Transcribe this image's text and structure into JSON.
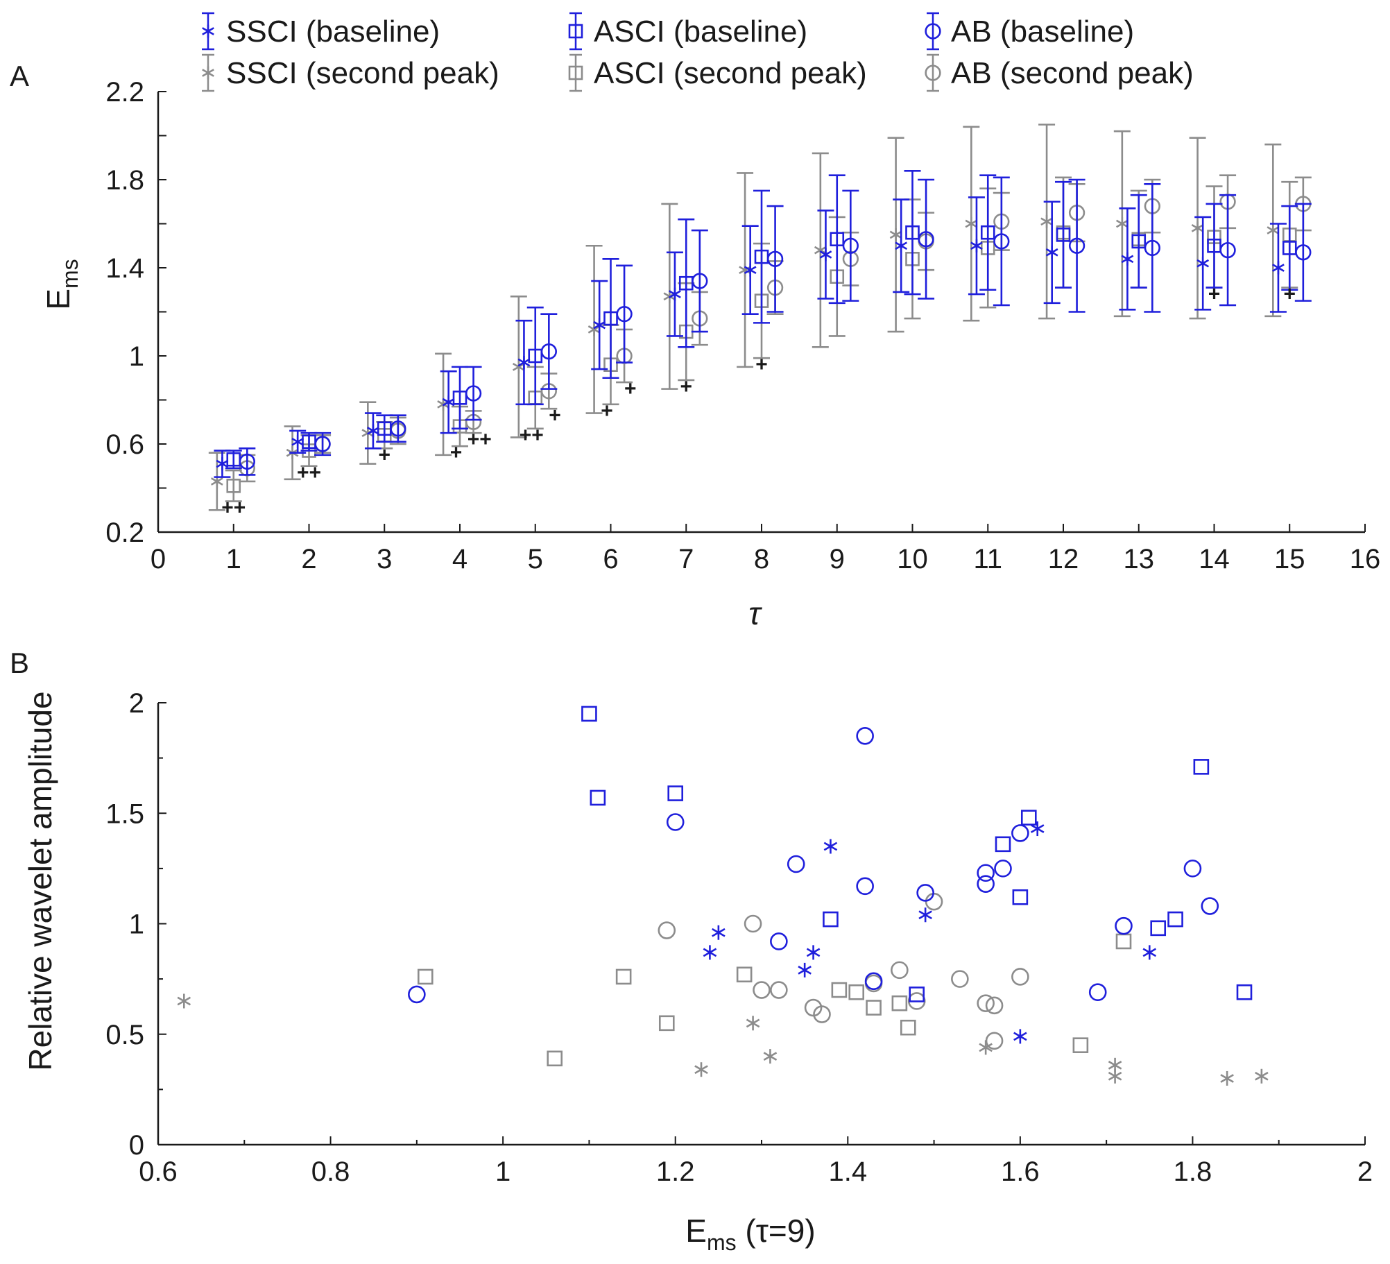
{
  "colors": {
    "baseline": "#1f1fdc",
    "second_peak": "#8c8c8c",
    "axis": "#1a1a1a",
    "sig": "#111111"
  },
  "legend": {
    "items": [
      {
        "label": "SSCI (baseline)",
        "marker": "asterisk",
        "color": "#1f1fdc"
      },
      {
        "label": "ASCI (baseline)",
        "marker": "square",
        "color": "#1f1fdc"
      },
      {
        "label": "AB (baseline)",
        "marker": "circle",
        "color": "#1f1fdc"
      },
      {
        "label": "SSCI (second peak)",
        "marker": "asterisk",
        "color": "#8c8c8c"
      },
      {
        "label": "ASCI (second peak)",
        "marker": "square",
        "color": "#8c8c8c"
      },
      {
        "label": "AB (second peak)",
        "marker": "circle",
        "color": "#8c8c8c"
      }
    ]
  },
  "chart_data": [
    {
      "panel": "A",
      "type": "errorbar",
      "xlabel": "τ",
      "ylabel": "E",
      "ylabel_sub": "ms",
      "xlim": [
        0,
        16
      ],
      "ylim": [
        0.2,
        2.2
      ],
      "xticks": [
        "0",
        "1",
        "2",
        "3",
        "4",
        "5",
        "6",
        "7",
        "8",
        "9",
        "10",
        "11",
        "12",
        "13",
        "14",
        "15",
        "16"
      ],
      "yticks": [
        "0.2",
        "0.6",
        "1",
        "1.4",
        "1.8",
        "2.2"
      ],
      "x": [
        1,
        2,
        3,
        4,
        5,
        6,
        7,
        8,
        9,
        10,
        11,
        12,
        13,
        14,
        15
      ],
      "series": [
        {
          "name": "SSCI (baseline)",
          "group": "SSCI",
          "condition": "baseline",
          "marker": "asterisk",
          "values": [
            0.51,
            0.61,
            0.66,
            0.79,
            0.97,
            1.14,
            1.28,
            1.39,
            1.46,
            1.5,
            1.5,
            1.47,
            1.44,
            1.42,
            1.4
          ],
          "errors": [
            0.06,
            0.05,
            0.08,
            0.14,
            0.19,
            0.2,
            0.19,
            0.2,
            0.2,
            0.21,
            0.22,
            0.23,
            0.23,
            0.21,
            0.2
          ]
        },
        {
          "name": "SSCI (second peak)",
          "group": "SSCI",
          "condition": "second peak",
          "marker": "asterisk",
          "values": [
            0.43,
            0.56,
            0.65,
            0.78,
            0.95,
            1.12,
            1.27,
            1.39,
            1.48,
            1.55,
            1.6,
            1.61,
            1.6,
            1.58,
            1.57
          ],
          "errors": [
            0.13,
            0.12,
            0.14,
            0.23,
            0.32,
            0.38,
            0.42,
            0.44,
            0.44,
            0.44,
            0.44,
            0.44,
            0.42,
            0.41,
            0.39
          ]
        },
        {
          "name": "ASCI (baseline)",
          "group": "ASCI",
          "condition": "baseline",
          "marker": "square",
          "values": [
            0.53,
            0.61,
            0.67,
            0.81,
            1.0,
            1.17,
            1.33,
            1.45,
            1.53,
            1.56,
            1.56,
            1.55,
            1.52,
            1.5,
            1.49
          ],
          "errors": [
            0.04,
            0.04,
            0.06,
            0.14,
            0.22,
            0.27,
            0.29,
            0.3,
            0.29,
            0.28,
            0.26,
            0.24,
            0.21,
            0.19,
            0.19
          ]
        },
        {
          "name": "ASCI (second peak)",
          "group": "ASCI",
          "condition": "second peak",
          "marker": "square",
          "values": [
            0.41,
            0.57,
            0.64,
            0.68,
            0.81,
            0.96,
            1.11,
            1.25,
            1.36,
            1.44,
            1.49,
            1.56,
            1.53,
            1.54,
            1.55
          ],
          "errors": [
            0.07,
            0.07,
            0.06,
            0.09,
            0.14,
            0.18,
            0.22,
            0.26,
            0.27,
            0.27,
            0.27,
            0.25,
            0.22,
            0.23,
            0.24
          ]
        },
        {
          "name": "AB (baseline)",
          "group": "AB",
          "condition": "baseline",
          "marker": "circle",
          "values": [
            0.52,
            0.6,
            0.67,
            0.83,
            1.02,
            1.19,
            1.34,
            1.44,
            1.5,
            1.53,
            1.52,
            1.5,
            1.49,
            1.48,
            1.47
          ],
          "errors": [
            0.06,
            0.05,
            0.06,
            0.12,
            0.17,
            0.22,
            0.23,
            0.24,
            0.25,
            0.27,
            0.29,
            0.3,
            0.29,
            0.25,
            0.22
          ]
        },
        {
          "name": "AB (second peak)",
          "group": "AB",
          "condition": "second peak",
          "marker": "circle",
          "values": [
            0.49,
            0.6,
            0.66,
            0.7,
            0.84,
            1.0,
            1.17,
            1.31,
            1.44,
            1.52,
            1.61,
            1.65,
            1.68,
            1.7,
            1.69
          ],
          "errors": [
            0.06,
            0.04,
            0.06,
            0.05,
            0.08,
            0.12,
            0.12,
            0.12,
            0.12,
            0.13,
            0.13,
            0.13,
            0.12,
            0.12,
            0.12
          ]
        }
      ],
      "significance": [
        {
          "x": 1,
          "label": "++"
        },
        {
          "x": 2,
          "label": "++"
        },
        {
          "x": 3,
          "label": "+"
        },
        {
          "x": 4,
          "label": "+"
        },
        {
          "x": 4,
          "label": "++"
        },
        {
          "x": 5,
          "label": "++"
        },
        {
          "x": 5,
          "label": "+"
        },
        {
          "x": 6,
          "label": "+"
        },
        {
          "x": 6,
          "label": "+"
        },
        {
          "x": 7,
          "label": "+"
        },
        {
          "x": 8,
          "label": "+"
        },
        {
          "x": 14,
          "label": "+"
        },
        {
          "x": 15,
          "label": "+"
        }
      ]
    },
    {
      "panel": "B",
      "type": "scatter",
      "xlabel": "E",
      "xlabel_sub": "ms",
      "xlabel_suffix": " (τ=9)",
      "ylabel": "Relative wavelet amplitude",
      "xlim": [
        0.6,
        2
      ],
      "ylim": [
        0,
        2
      ],
      "xticks": [
        "0.6",
        "0.8",
        "1",
        "1.2",
        "1.4",
        "1.6",
        "1.8",
        "2"
      ],
      "yticks": [
        "0",
        "0.5",
        "1",
        "1.5",
        "2"
      ],
      "series": [
        {
          "name": "ASCI (baseline)",
          "marker": "square",
          "condition": "baseline",
          "points": [
            [
              1.1,
              1.95
            ],
            [
              1.11,
              1.57
            ],
            [
              1.2,
              1.59
            ],
            [
              1.38,
              1.02
            ],
            [
              1.48,
              0.68
            ],
            [
              1.58,
              1.36
            ],
            [
              1.6,
              1.12
            ],
            [
              1.61,
              1.48
            ],
            [
              1.76,
              0.98
            ],
            [
              1.78,
              1.02
            ],
            [
              1.81,
              1.71
            ],
            [
              1.86,
              0.69
            ]
          ]
        },
        {
          "name": "AB (baseline)",
          "marker": "circle",
          "condition": "baseline",
          "points": [
            [
              0.9,
              0.68
            ],
            [
              1.2,
              1.46
            ],
            [
              1.32,
              0.92
            ],
            [
              1.34,
              1.27
            ],
            [
              1.42,
              1.17
            ],
            [
              1.42,
              1.85
            ],
            [
              1.43,
              0.74
            ],
            [
              1.49,
              1.14
            ],
            [
              1.56,
              1.18
            ],
            [
              1.56,
              1.23
            ],
            [
              1.58,
              1.25
            ],
            [
              1.6,
              1.41
            ],
            [
              1.69,
              0.69
            ],
            [
              1.72,
              0.99
            ],
            [
              1.8,
              1.25
            ],
            [
              1.82,
              1.08
            ]
          ]
        },
        {
          "name": "SSCI (baseline)",
          "marker": "asterisk",
          "condition": "baseline",
          "points": [
            [
              1.24,
              0.87
            ],
            [
              1.25,
              0.96
            ],
            [
              1.35,
              0.79
            ],
            [
              1.36,
              0.87
            ],
            [
              1.38,
              1.35
            ],
            [
              1.49,
              1.04
            ],
            [
              1.6,
              0.49
            ],
            [
              1.62,
              1.43
            ],
            [
              1.75,
              0.87
            ]
          ]
        },
        {
          "name": "ASCI (second peak)",
          "marker": "square",
          "condition": "second peak",
          "points": [
            [
              0.91,
              0.76
            ],
            [
              1.06,
              0.39
            ],
            [
              1.14,
              0.76
            ],
            [
              1.19,
              0.55
            ],
            [
              1.28,
              0.77
            ],
            [
              1.39,
              0.7
            ],
            [
              1.41,
              0.69
            ],
            [
              1.43,
              0.62
            ],
            [
              1.46,
              0.64
            ],
            [
              1.47,
              0.53
            ],
            [
              1.67,
              0.45
            ],
            [
              1.72,
              0.92
            ]
          ]
        },
        {
          "name": "AB (second peak)",
          "marker": "circle",
          "condition": "second peak",
          "points": [
            [
              1.19,
              0.97
            ],
            [
              1.29,
              1.0
            ],
            [
              1.3,
              0.7
            ],
            [
              1.32,
              0.7
            ],
            [
              1.36,
              0.62
            ],
            [
              1.37,
              0.59
            ],
            [
              1.43,
              0.73
            ],
            [
              1.46,
              0.79
            ],
            [
              1.48,
              0.65
            ],
            [
              1.5,
              1.1
            ],
            [
              1.53,
              0.75
            ],
            [
              1.56,
              0.64
            ],
            [
              1.57,
              0.63
            ],
            [
              1.57,
              0.47
            ],
            [
              1.6,
              0.76
            ]
          ]
        },
        {
          "name": "SSCI (second peak)",
          "marker": "asterisk",
          "condition": "second peak",
          "points": [
            [
              0.63,
              0.65
            ],
            [
              1.23,
              0.34
            ],
            [
              1.29,
              0.55
            ],
            [
              1.31,
              0.4
            ],
            [
              1.56,
              0.44
            ],
            [
              1.71,
              0.31
            ],
            [
              1.71,
              0.36
            ],
            [
              1.84,
              0.3
            ],
            [
              1.88,
              0.31
            ]
          ]
        }
      ]
    }
  ]
}
